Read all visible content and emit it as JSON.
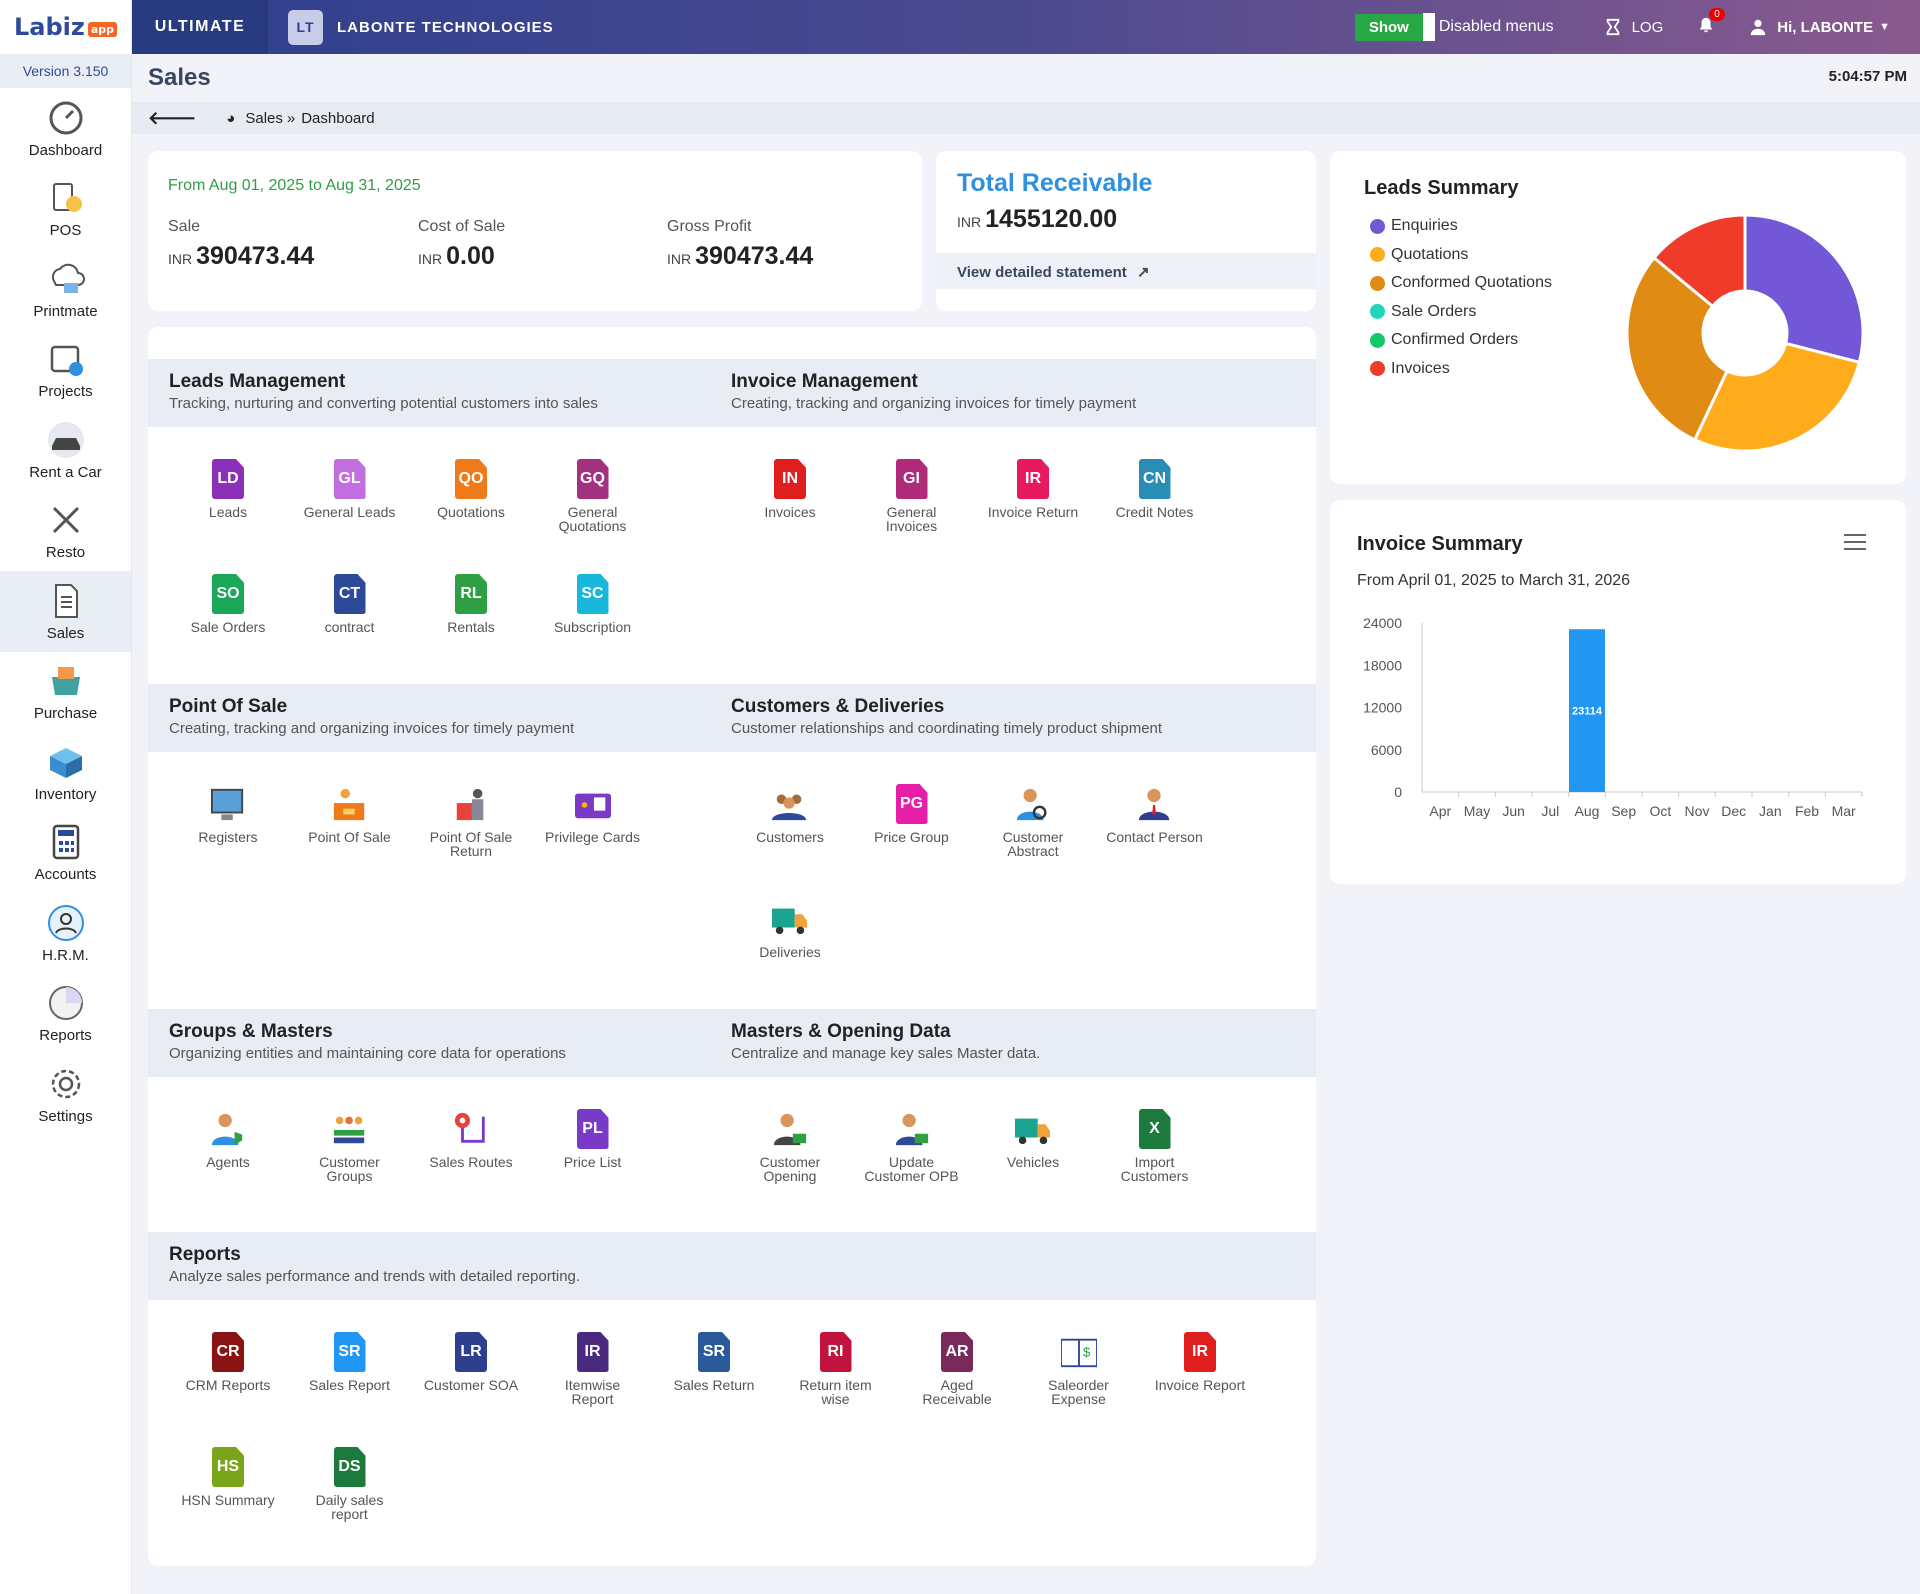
{
  "brand": {
    "name": "Labiz",
    "suffix": "app",
    "version": "Version 3.150"
  },
  "sidebar": [
    {
      "key": "dashboard",
      "label": "Dashboard"
    },
    {
      "key": "pos",
      "label": "POS"
    },
    {
      "key": "printmate",
      "label": "Printmate"
    },
    {
      "key": "projects",
      "label": "Projects"
    },
    {
      "key": "rentacar",
      "label": "Rent a Car"
    },
    {
      "key": "resto",
      "label": "Resto"
    },
    {
      "key": "sales",
      "label": "Sales"
    },
    {
      "key": "purchase",
      "label": "Purchase"
    },
    {
      "key": "inventory",
      "label": "Inventory"
    },
    {
      "key": "accounts",
      "label": "Accounts"
    },
    {
      "key": "hrm",
      "label": "H.R.M."
    },
    {
      "key": "reports",
      "label": "Reports"
    },
    {
      "key": "settings",
      "label": "Settings"
    }
  ],
  "topbar": {
    "plan": "ULTIMATE",
    "org_initials": "LT",
    "org_name": "LABONTE TECHNOLOGIES",
    "show_label": "Show",
    "disabled_menus": "Disabled menus",
    "log": "LOG",
    "notif_count": "0",
    "user": "Hi, LABONTE"
  },
  "page": {
    "title": "Sales",
    "clock": "5:04:57 PM",
    "crumb1": "Sales",
    "crumb_sep": "»",
    "crumb2": "Dashboard"
  },
  "summary": {
    "period": "From Aug 01, 2025 to Aug 31, 2025",
    "currency": "INR",
    "sale_label": "Sale",
    "sale": "390473.44",
    "cost_label": "Cost of Sale",
    "cost": "0.00",
    "gp_label": "Gross Profit",
    "gp": "390473.44"
  },
  "receivable": {
    "title": "Total Receivable",
    "currency": "INR",
    "value": "1455120.00",
    "link": "View detailed statement"
  },
  "sections": {
    "leads": {
      "title": "Leads Management",
      "sub": "Tracking, nurturing and converting potential customers into sales"
    },
    "invoice": {
      "title": "Invoice Management",
      "sub": "Creating, tracking and organizing invoices for timely payment"
    },
    "pos": {
      "title": "Point Of Sale",
      "sub": "Creating, tracking and organizing invoices for timely payment"
    },
    "customers": {
      "title": "Customers & Deliveries",
      "sub": "Customer relationships and coordinating timely product shipment"
    },
    "groups": {
      "title": "Groups & Masters",
      "sub": "Organizing entities and maintaining core data for operations"
    },
    "masters": {
      "title": "Masters & Opening Data",
      "sub": "Centralize and manage key sales Master data."
    },
    "reports": {
      "title": "Reports",
      "sub": "Analyze sales performance and trends with detailed reporting."
    }
  },
  "tiles": {
    "leads": [
      {
        "code": "LD",
        "label": "Leads",
        "color": "#8a2fb8"
      },
      {
        "code": "GL",
        "label": "General Leads",
        "color": "#c06ee0"
      },
      {
        "code": "QO",
        "label": "Quotations",
        "color": "#f07a1a"
      },
      {
        "code": "GQ",
        "label": "General Quotations",
        "color": "#a3317f"
      },
      {
        "code": "SO",
        "label": "Sale Orders",
        "color": "#1aa757"
      },
      {
        "code": "CT",
        "label": "contract",
        "color": "#2d4a9a"
      },
      {
        "code": "RL",
        "label": "Rentals",
        "color": "#2ea043"
      },
      {
        "code": "SC",
        "label": "Subscription",
        "color": "#18b8dd"
      }
    ],
    "invoice": [
      {
        "code": "IN",
        "label": "Invoices",
        "color": "#e01e1e"
      },
      {
        "code": "GI",
        "label": "General Invoices",
        "color": "#b02a7a"
      },
      {
        "code": "IR",
        "label": "Invoice Return",
        "color": "#e8195e"
      },
      {
        "code": "CN",
        "label": "Credit Notes",
        "color": "#2a8db5"
      }
    ],
    "pos": [
      {
        "label": "Registers"
      },
      {
        "label": "Point Of Sale"
      },
      {
        "label": "Point Of Sale Return"
      },
      {
        "label": "Privilege Cards"
      }
    ],
    "customers": [
      {
        "label": "Customers"
      },
      {
        "code": "PG",
        "label": "Price Group",
        "color": "#e61ea8"
      },
      {
        "label": "Customer Abstract"
      },
      {
        "label": "Contact Person"
      },
      {
        "label": "Deliveries"
      }
    ],
    "groups": [
      {
        "label": "Agents"
      },
      {
        "label": "Customer Groups"
      },
      {
        "label": "Sales Routes"
      },
      {
        "code": "PL",
        "label": "Price List",
        "color": "#7a3ac8"
      }
    ],
    "masters": [
      {
        "label": "Customer Opening"
      },
      {
        "label": "Update Customer OPB"
      },
      {
        "label": "Vehicles"
      },
      {
        "code": "X",
        "label": "Import Customers",
        "color": "#1d7a3d"
      }
    ],
    "reports": [
      {
        "code": "CR",
        "label": "CRM Reports",
        "color": "#8a1414"
      },
      {
        "code": "SR",
        "label": "Sales Report",
        "color": "#2196f3"
      },
      {
        "code": "LR",
        "label": "Customer SOA",
        "color": "#2d3f8e"
      },
      {
        "code": "IR",
        "label": "Itemwise Report",
        "color": "#4a2a80"
      },
      {
        "code": "SR",
        "label": "Sales Return",
        "color": "#2a5a9a"
      },
      {
        "code": "RI",
        "label": "Return item wise",
        "color": "#c0143c"
      },
      {
        "code": "AR",
        "label": "Aged Receivable",
        "color": "#7a2a5a"
      },
      {
        "label": "Saleorder Expense"
      },
      {
        "code": "IR",
        "label": "Invoice Report",
        "color": "#e01e1e"
      },
      {
        "code": "HS",
        "label": "HSN Summary",
        "color": "#7aa51a"
      },
      {
        "code": "DS",
        "label": "Daily sales report",
        "color": "#1d7a3d"
      }
    ]
  },
  "leads_summary": {
    "title": "Leads Summary",
    "legend": [
      {
        "label": "Enquiries",
        "color": "#7257d6"
      },
      {
        "label": "Quotations",
        "color": "#ffac1c"
      },
      {
        "label": "Conformed Quotations",
        "color": "#e08b14"
      },
      {
        "label": "Sale Orders",
        "color": "#1fd6b8"
      },
      {
        "label": "Confirmed Orders",
        "color": "#15c96a"
      },
      {
        "label": "Invoices",
        "color": "#f03a2a"
      }
    ]
  },
  "chart_data": {
    "type": "pie",
    "title": "Leads Summary",
    "labels": [
      "Enquiries",
      "Quotations",
      "Conformed Quotations",
      "Sale Orders",
      "Confirmed Orders",
      "Invoices"
    ],
    "values": [
      29,
      28,
      29,
      0,
      0,
      14
    ]
  },
  "invoice_summary": {
    "title": "Invoice Summary",
    "period": "From April 01, 2025 to March 31, 2026"
  },
  "bar_chart": {
    "type": "bar",
    "categories": [
      "Apr",
      "May",
      "Jun",
      "Jul",
      "Aug",
      "Sep",
      "Oct",
      "Nov",
      "Dec",
      "Jan",
      "Feb",
      "Mar"
    ],
    "values": [
      0,
      0,
      0,
      0,
      23114,
      0,
      0,
      0,
      0,
      0,
      0,
      0
    ],
    "ylim": [
      0,
      24000
    ],
    "yticks": [
      "24000",
      "18000",
      "12000",
      "6000",
      "0"
    ],
    "data_label": "23114"
  }
}
